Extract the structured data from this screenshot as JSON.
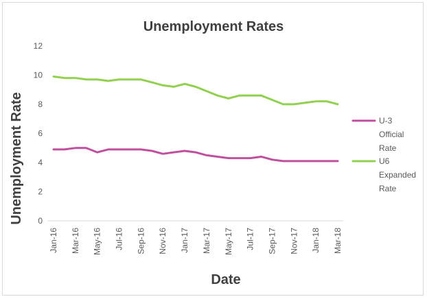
{
  "chart_data": {
    "type": "line",
    "title": "Unemployment Rates",
    "xlabel": "Date",
    "ylabel": "Unemployment Rate",
    "ylim": [
      0,
      12
    ],
    "yticks": [
      0,
      2,
      4,
      6,
      8,
      10,
      12
    ],
    "grid": false,
    "legend_position": "right",
    "x": [
      "Jan-16",
      "Feb-16",
      "Mar-16",
      "Apr-16",
      "May-16",
      "Jun-16",
      "Jul-16",
      "Aug-16",
      "Sep-16",
      "Oct-16",
      "Nov-16",
      "Dec-16",
      "Jan-17",
      "Feb-17",
      "Mar-17",
      "Apr-17",
      "May-17",
      "Jun-17",
      "Jul-17",
      "Aug-17",
      "Sep-17",
      "Oct-17",
      "Nov-17",
      "Dec-17",
      "Jan-18",
      "Feb-18",
      "Mar-18"
    ],
    "x_tick_labels": [
      "Jan-16",
      "Mar-16",
      "May-16",
      "Jul-16",
      "Sep-16",
      "Nov-16",
      "Jan-17",
      "Mar-17",
      "May-17",
      "Jul-17",
      "Sep-17",
      "Nov-17",
      "Jan-18",
      "Mar-18"
    ],
    "series": [
      {
        "name": "U-3 Official Rate",
        "legend_lines": [
          "U-3",
          "Official",
          "Rate"
        ],
        "color": "#c0509e",
        "values": [
          4.9,
          4.9,
          5.0,
          5.0,
          4.7,
          4.9,
          4.9,
          4.9,
          4.9,
          4.8,
          4.6,
          4.7,
          4.8,
          4.7,
          4.5,
          4.4,
          4.3,
          4.3,
          4.3,
          4.4,
          4.2,
          4.1,
          4.1,
          4.1,
          4.1,
          4.1,
          4.1
        ]
      },
      {
        "name": "U6 Expanded Rate",
        "legend_lines": [
          "U6",
          "Expanded",
          "Rate"
        ],
        "color": "#92d050",
        "values": [
          9.9,
          9.8,
          9.8,
          9.7,
          9.7,
          9.6,
          9.7,
          9.7,
          9.7,
          9.5,
          9.3,
          9.2,
          9.4,
          9.2,
          8.9,
          8.6,
          8.4,
          8.6,
          8.6,
          8.6,
          8.3,
          8.0,
          8.0,
          8.1,
          8.2,
          8.2,
          8.0
        ]
      }
    ]
  }
}
